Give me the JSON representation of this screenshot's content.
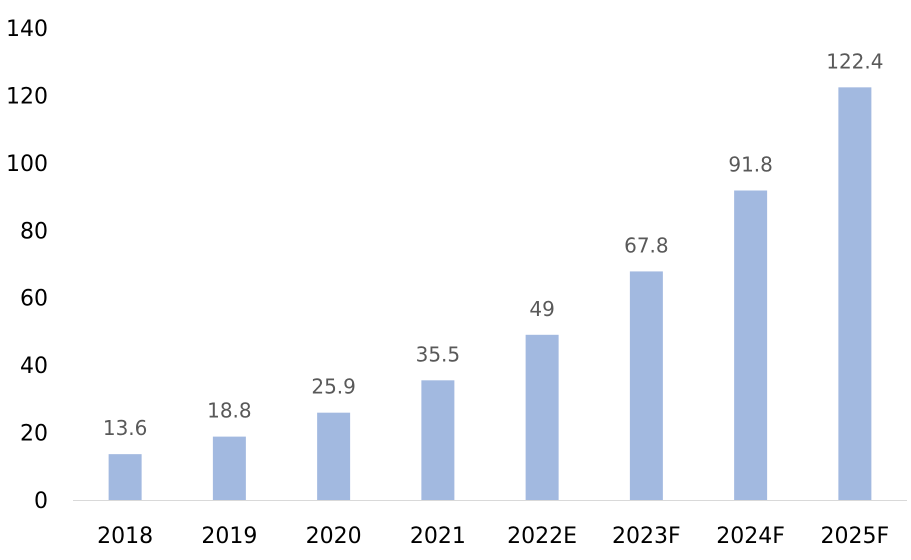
{
  "chart_data": {
    "type": "bar",
    "title": "",
    "xlabel": "",
    "ylabel": "",
    "categories": [
      "2018",
      "2019",
      "2020",
      "2021",
      "2022E",
      "2023F",
      "2024F",
      "2025F"
    ],
    "values": [
      13.6,
      18.8,
      25.9,
      35.5,
      49,
      67.8,
      91.8,
      122.4
    ],
    "data_labels": [
      "13.6",
      "18.8",
      "25.9",
      "35.5",
      "49",
      "67.8",
      "91.8",
      "122.4"
    ],
    "ylim": [
      0,
      140
    ],
    "yticks": [
      0,
      20,
      40,
      60,
      80,
      100,
      120,
      140
    ],
    "ytick_labels": [
      "0",
      "20",
      "40",
      "60",
      "80",
      "100",
      "120",
      "140"
    ],
    "grid": false,
    "legend": "none",
    "bar_color": "#a2b9e0",
    "axis_color": "#d9d9d9",
    "label_color": "#595959"
  }
}
